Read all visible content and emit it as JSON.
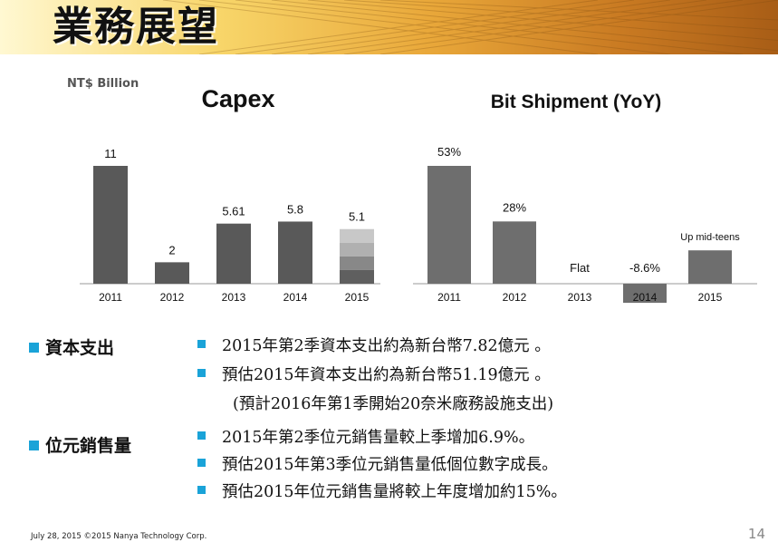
{
  "slide": {
    "title": "業務展望",
    "unit_label": "NT$ Billion",
    "footer": "July 28, 2015   ©2015 Nanya Technology Corp.",
    "page_number": "14"
  },
  "colors": {
    "bar": "#595959",
    "bar_alt": "#6e6e6e",
    "accent": "#1aa3d8",
    "grad_1": "#c8c8c8",
    "grad_2": "#b0b0b0",
    "grad_3": "#888888",
    "grad_4": "#5f5f5f"
  },
  "chart_data": [
    {
      "type": "bar",
      "title": "Capex",
      "ylabel": "NT$ Billion",
      "categories": [
        "2011",
        "2012",
        "2013",
        "2014",
        "2015"
      ],
      "values": [
        11,
        2,
        5.61,
        5.8,
        5.1
      ],
      "labels": [
        "11",
        "2",
        "5.61",
        "5.8",
        "5.1"
      ],
      "ylim": [
        0,
        11
      ]
    },
    {
      "type": "bar",
      "title": "Bit Shipment (YoY)",
      "categories": [
        "2011",
        "2012",
        "2013",
        "2014",
        "2015"
      ],
      "values": [
        53,
        28,
        0,
        -8.6,
        15
      ],
      "labels": [
        "53%",
        "28%",
        "Flat",
        "-8.6%",
        "Up mid-teens"
      ],
      "ylim": [
        -8.6,
        53
      ]
    }
  ],
  "sections": [
    {
      "label": "資本支出",
      "bullets": [
        "2015年第2季資本支出約為新台幣7.82億元 。",
        "預估2015年資本支出約為新台幣51.19億元 。"
      ],
      "sub_note": "(預計2016年第1季開始20奈米廠務設施支出)"
    },
    {
      "label": "位元銷售量",
      "bullets": [
        "2015年第2季位元銷售量較上季增加6.9%。",
        "預估2015年第3季位元銷售量低個位數字成長。",
        "預估2015年位元銷售量將較上年度增加約15%。"
      ]
    }
  ]
}
